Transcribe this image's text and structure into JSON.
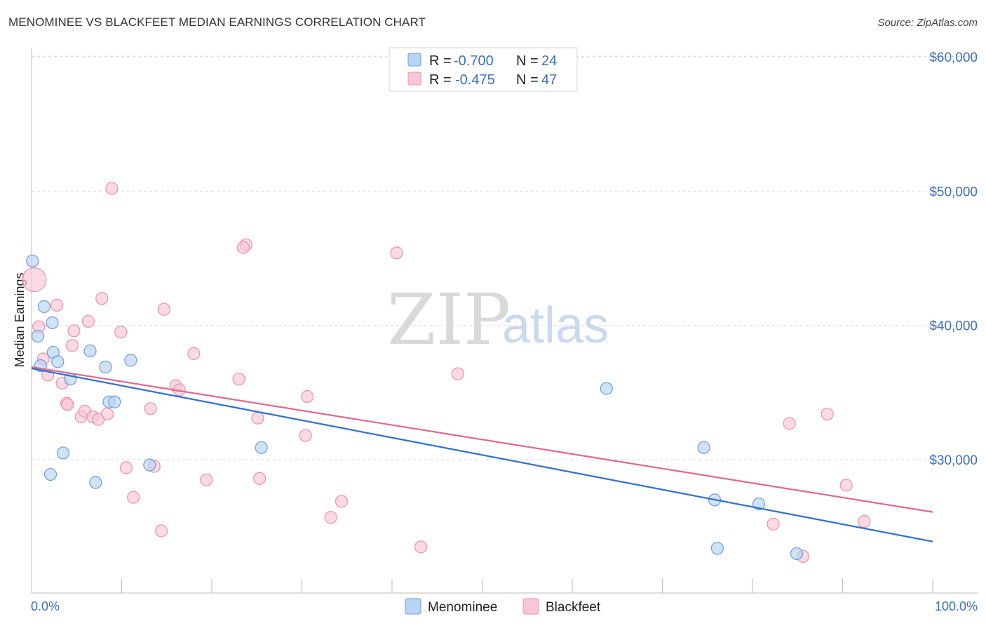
{
  "title": "MENOMINEE VS BLACKFEET MEDIAN EARNINGS CORRELATION CHART",
  "source": "Source: ZipAtlas.com",
  "watermark": {
    "zip": "ZIP",
    "atlas": "atlas"
  },
  "legend": {
    "rows": [
      {
        "r_label": "R =",
        "r_value": "-0.700",
        "n_label": "N =",
        "n_value": "24"
      },
      {
        "r_label": "R =",
        "r_value": "-0.475",
        "n_label": "N =",
        "n_value": "47"
      }
    ]
  },
  "colors": {
    "menominee_fill": "#b9d3f3",
    "menominee_stroke": "#6d9ee0",
    "menominee_line": "#2d6fd0",
    "blackfeet_fill": "#f9c6d6",
    "blackfeet_stroke": "#ee8fae",
    "blackfeet_line": "#e2678f"
  },
  "chart_data": {
    "type": "scatter",
    "title": "MENOMINEE VS BLACKFEET MEDIAN EARNINGS CORRELATION CHART",
    "xlabel": "",
    "ylabel": "Median Earnings",
    "xlim": [
      0,
      100
    ],
    "ylim": [
      21000,
      62000
    ],
    "y_ticks": [
      {
        "value": 30000,
        "label": "$30,000"
      },
      {
        "value": 40000,
        "label": "$40,000"
      },
      {
        "value": 50000,
        "label": "$50,000"
      },
      {
        "value": 60000,
        "label": "$60,000"
      }
    ],
    "x_tick_labels": {
      "left": "0.0%",
      "right": "100.0%"
    },
    "grid": true,
    "series": [
      {
        "name": "Menominee",
        "points": [
          [
            0.1,
            44800
          ],
          [
            0.7,
            39200
          ],
          [
            1.4,
            41400
          ],
          [
            2.3,
            40200
          ],
          [
            2.4,
            38000
          ],
          [
            2.9,
            37300
          ],
          [
            1.0,
            37000
          ],
          [
            4.3,
            36000
          ],
          [
            6.5,
            38100
          ],
          [
            8.2,
            36900
          ],
          [
            11.0,
            37400
          ],
          [
            8.6,
            34300
          ],
          [
            9.2,
            34300
          ],
          [
            3.5,
            30500
          ],
          [
            2.1,
            28900
          ],
          [
            7.1,
            28300
          ],
          [
            13.1,
            29600
          ],
          [
            25.5,
            30900
          ],
          [
            63.8,
            35300
          ],
          [
            74.6,
            30900
          ],
          [
            75.8,
            27000
          ],
          [
            80.7,
            26700
          ],
          [
            76.1,
            23400
          ],
          [
            84.9,
            23000
          ]
        ],
        "trend": {
          "x": [
            0,
            100
          ],
          "y": [
            36800,
            23900
          ]
        }
      },
      {
        "name": "Blackfeet",
        "points": [
          [
            0.3,
            43400
          ],
          [
            2.8,
            41500
          ],
          [
            0.8,
            39900
          ],
          [
            1.3,
            37500
          ],
          [
            1.8,
            36300
          ],
          [
            3.4,
            35700
          ],
          [
            3.9,
            34200
          ],
          [
            4.5,
            38500
          ],
          [
            4.7,
            39600
          ],
          [
            6.3,
            40300
          ],
          [
            7.8,
            42000
          ],
          [
            8.9,
            50200
          ],
          [
            9.9,
            39500
          ],
          [
            5.5,
            33200
          ],
          [
            5.9,
            33600
          ],
          [
            6.8,
            33200
          ],
          [
            7.4,
            33000
          ],
          [
            8.4,
            33400
          ],
          [
            10.5,
            29400
          ],
          [
            11.3,
            27200
          ],
          [
            13.2,
            33800
          ],
          [
            13.6,
            29500
          ],
          [
            14.4,
            24700
          ],
          [
            14.7,
            41200
          ],
          [
            16.0,
            35500
          ],
          [
            16.4,
            35200
          ],
          [
            18.0,
            37900
          ],
          [
            19.4,
            28500
          ],
          [
            23.0,
            36000
          ],
          [
            23.8,
            46000
          ],
          [
            25.1,
            33100
          ],
          [
            25.3,
            28600
          ],
          [
            30.4,
            31800
          ],
          [
            30.6,
            34700
          ],
          [
            33.2,
            25700
          ],
          [
            34.4,
            26900
          ],
          [
            40.5,
            45400
          ],
          [
            43.2,
            23500
          ],
          [
            47.3,
            36400
          ],
          [
            84.1,
            32700
          ],
          [
            82.3,
            25200
          ],
          [
            88.3,
            33400
          ],
          [
            90.4,
            28100
          ],
          [
            92.4,
            25400
          ],
          [
            85.6,
            22800
          ],
          [
            23.5,
            45800
          ],
          [
            4.0,
            34100
          ]
        ],
        "trend": {
          "x": [
            0,
            100
          ],
          "y": [
            36900,
            26100
          ]
        }
      }
    ]
  },
  "bottom_legend": [
    {
      "label": "Menominee"
    },
    {
      "label": "Blackfeet"
    }
  ]
}
